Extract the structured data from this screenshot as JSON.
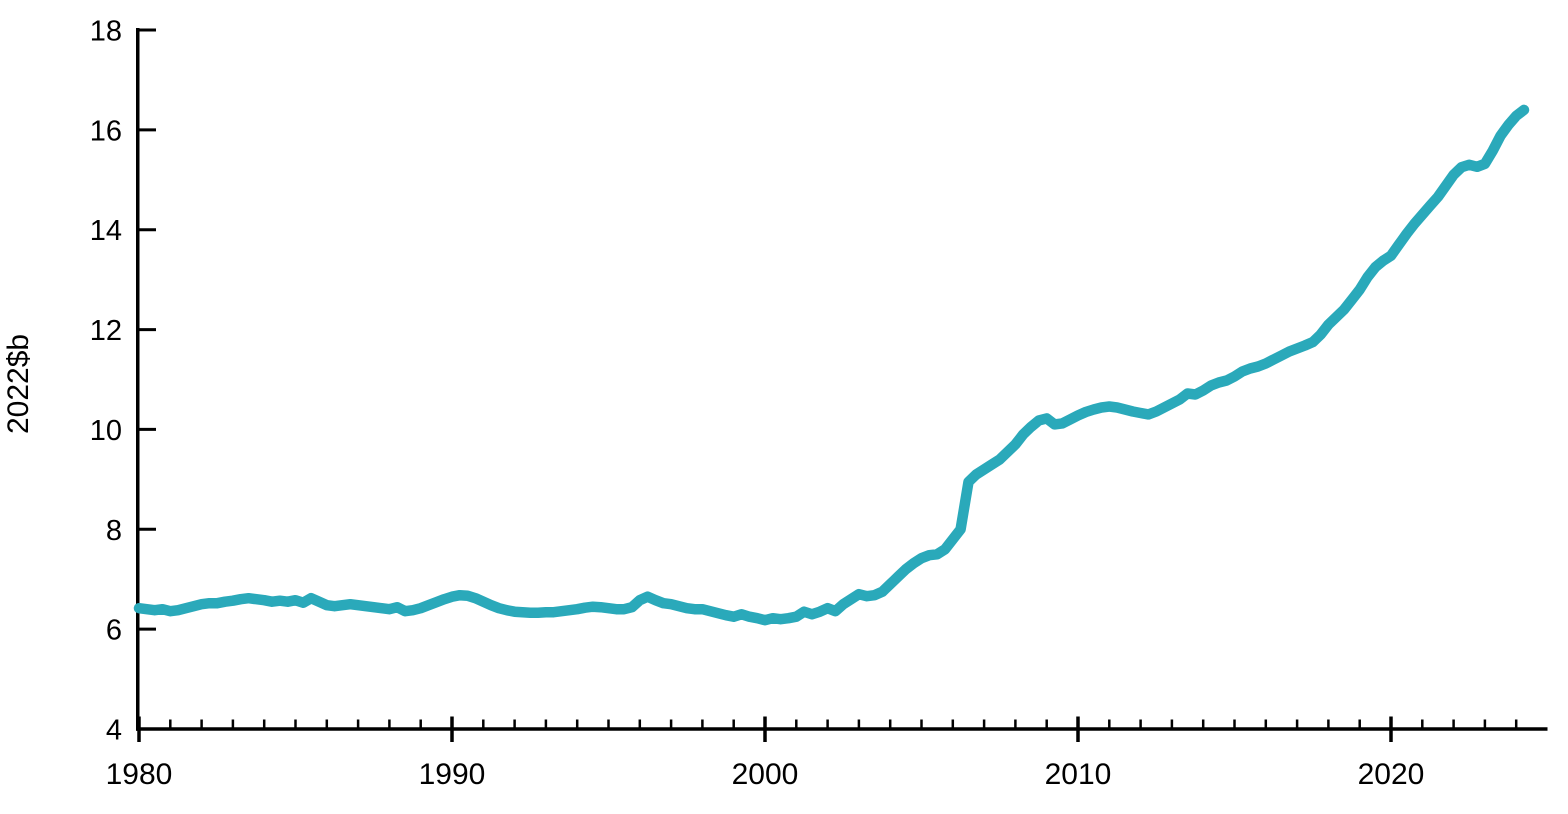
{
  "chart_data": {
    "type": "line",
    "title": "",
    "xlabel": "",
    "ylabel": "2022$b",
    "grid": false,
    "legend": "none",
    "background_color": "#ffffff",
    "line_color": "#2aa9ba",
    "axis_color": "#000000",
    "xlim": [
      1980,
      2025
    ],
    "ylim": [
      4,
      18
    ],
    "y_ticks": [
      4,
      6,
      8,
      10,
      12,
      14,
      16,
      18
    ],
    "x_ticks_major": [
      1980,
      1990,
      2000,
      2010,
      2020
    ],
    "x_minor_ticks_range": [
      1981,
      2024
    ],
    "series": [
      {
        "x_start": 1980,
        "x_step": 0.25,
        "x_end": 2024.25,
        "values": [
          6.42,
          6.4,
          6.38,
          6.4,
          6.36,
          6.38,
          6.42,
          6.46,
          6.5,
          6.52,
          6.52,
          6.55,
          6.57,
          6.6,
          6.62,
          6.6,
          6.58,
          6.55,
          6.57,
          6.55,
          6.58,
          6.53,
          6.62,
          6.55,
          6.48,
          6.46,
          6.48,
          6.5,
          6.48,
          6.46,
          6.44,
          6.42,
          6.4,
          6.44,
          6.36,
          6.38,
          6.42,
          6.48,
          6.54,
          6.6,
          6.65,
          6.68,
          6.67,
          6.62,
          6.55,
          6.48,
          6.42,
          6.38,
          6.35,
          6.34,
          6.33,
          6.33,
          6.34,
          6.34,
          6.36,
          6.38,
          6.4,
          6.43,
          6.45,
          6.44,
          6.42,
          6.4,
          6.4,
          6.44,
          6.58,
          6.65,
          6.58,
          6.52,
          6.5,
          6.46,
          6.42,
          6.4,
          6.4,
          6.36,
          6.32,
          6.28,
          6.25,
          6.3,
          6.25,
          6.22,
          6.18,
          6.22,
          6.2,
          6.22,
          6.25,
          6.35,
          6.3,
          6.35,
          6.42,
          6.36,
          6.5,
          6.6,
          6.7,
          6.66,
          6.68,
          6.75,
          6.9,
          7.05,
          7.2,
          7.32,
          7.42,
          7.48,
          7.5,
          7.6,
          7.8,
          8.0,
          8.95,
          9.1,
          9.2,
          9.3,
          9.4,
          9.55,
          9.7,
          9.9,
          10.05,
          10.18,
          10.22,
          10.1,
          10.12,
          10.2,
          10.28,
          10.35,
          10.4,
          10.44,
          10.46,
          10.44,
          10.4,
          10.36,
          10.33,
          10.3,
          10.36,
          10.44,
          10.52,
          10.6,
          10.72,
          10.7,
          10.78,
          10.88,
          10.94,
          10.98,
          11.06,
          11.16,
          11.22,
          11.26,
          11.32,
          11.4,
          11.48,
          11.56,
          11.62,
          11.68,
          11.75,
          11.9,
          12.1,
          12.25,
          12.4,
          12.6,
          12.8,
          13.05,
          13.25,
          13.38,
          13.48,
          13.7,
          13.92,
          14.12,
          14.3,
          14.48,
          14.66,
          14.88,
          15.1,
          15.25,
          15.3,
          15.26,
          15.32,
          15.58,
          15.88,
          16.1,
          16.28,
          16.4
        ]
      }
    ]
  }
}
